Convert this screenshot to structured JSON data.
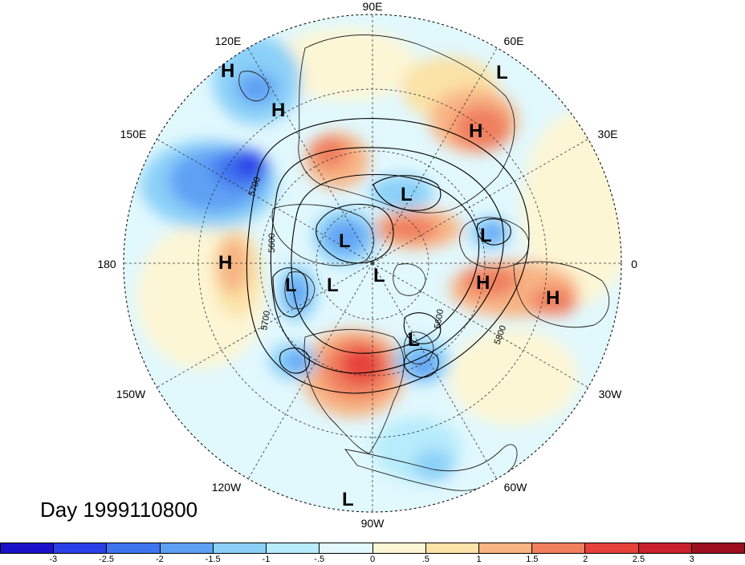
{
  "figure": {
    "title": "Day 1999110800",
    "longitude_labels": {
      "n90e": "90E",
      "n120e": "120E",
      "n60e": "60E",
      "n150e": "150E",
      "n30e": "30E",
      "n180": "180",
      "n0": "0",
      "n150w": "150W",
      "n30w": "30W",
      "n120w": "120W",
      "n60w": "60W",
      "n90w": "90W"
    },
    "pressure_centers": [
      {
        "type": "H",
        "name": "h-120e-outer"
      },
      {
        "type": "H",
        "name": "h-120e-inner"
      },
      {
        "type": "L",
        "name": "l-60e-outer"
      },
      {
        "type": "H",
        "name": "h-60e"
      },
      {
        "type": "L",
        "name": "l-siberia"
      },
      {
        "type": "L",
        "name": "l-europe"
      },
      {
        "type": "L",
        "name": "l-arctic"
      },
      {
        "type": "H",
        "name": "h-180"
      },
      {
        "type": "L",
        "name": "l-bering"
      },
      {
        "type": "L",
        "name": "l-pole-1"
      },
      {
        "type": "L",
        "name": "l-pole-2"
      },
      {
        "type": "H",
        "name": "h-mediterranean"
      },
      {
        "type": "H",
        "name": "h-africa"
      },
      {
        "type": "L",
        "name": "l-atlantic"
      },
      {
        "type": "L",
        "name": "l-90w-outer"
      }
    ],
    "contour_labels": [
      "5700",
      "5600",
      "5700",
      "5600",
      "5800"
    ]
  },
  "colorbar": {
    "colors": [
      "#1a12c8",
      "#2a40e6",
      "#3f74ef",
      "#5ea0f4",
      "#8ad0f8",
      "#b6ecfb",
      "#e1f8fd",
      "#fdf6d4",
      "#fbe2a6",
      "#f8b483",
      "#f07f5e",
      "#e6413b",
      "#c91f2a",
      "#9b0f1e"
    ],
    "ticks": [
      "-3",
      "-2.5",
      "-2",
      "-1.5",
      "-1",
      "-.5",
      "0",
      ".5",
      "1",
      "1.5",
      "2",
      "2.5",
      "3"
    ]
  }
}
